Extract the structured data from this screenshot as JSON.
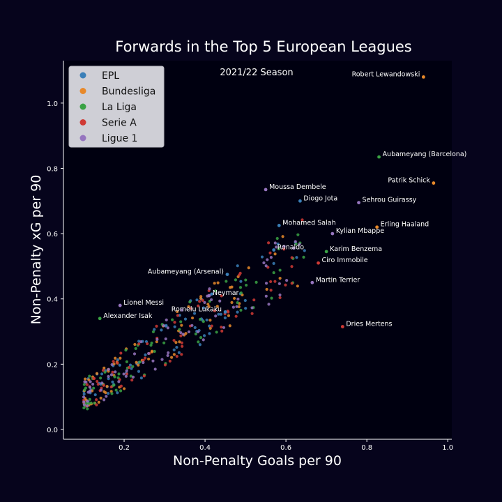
{
  "chart_data": {
    "type": "scatter",
    "title": "Forwards in the Top 5 European Leagues",
    "subtitle": "2021/22 Season",
    "xlabel": "Non-Penalty Goals per 90",
    "ylabel": "Non-Penalty xG per 90",
    "xlim": [
      0.05,
      1.01
    ],
    "ylim": [
      -0.03,
      1.13
    ],
    "x_ticks": [
      0.2,
      0.4,
      0.6,
      0.8,
      1.0
    ],
    "y_ticks": [
      0.0,
      0.2,
      0.4,
      0.6,
      0.8,
      1.0
    ],
    "x_tick_labels": [
      "0.2",
      "0.4",
      "0.6",
      "0.8",
      "1.0"
    ],
    "y_tick_labels": [
      "0.0",
      "0.2",
      "0.4",
      "0.6",
      "0.8",
      "1.0"
    ],
    "grid": false,
    "legend_position": "top-left",
    "colors": {
      "background": "#06041c",
      "text": "#ffffff",
      "legend_box": "#cfcfd6",
      "legend_text": "#111111"
    },
    "series": [
      {
        "name": "EPL",
        "color": "#3a7fb8"
      },
      {
        "name": "Bundesliga",
        "color": "#e8892a"
      },
      {
        "name": "La Liga",
        "color": "#3aa244"
      },
      {
        "name": "Serie A",
        "color": "#d03a35"
      },
      {
        "name": "Ligue 1",
        "color": "#9675bf"
      }
    ],
    "labeled_points": [
      {
        "label": "Robert Lewandowski",
        "x": 0.94,
        "y": 1.08,
        "series": "Bundesliga",
        "anchor": "end"
      },
      {
        "label": "Aubameyang (Barcelona)",
        "x": 0.83,
        "y": 0.835,
        "series": "La Liga",
        "anchor": "start"
      },
      {
        "label": "Patrik Schick",
        "x": 0.965,
        "y": 0.755,
        "series": "Bundesliga",
        "anchor": "end"
      },
      {
        "label": "Moussa Dembele",
        "x": 0.55,
        "y": 0.735,
        "series": "Ligue 1",
        "anchor": "start"
      },
      {
        "label": "Diogo Jota",
        "x": 0.635,
        "y": 0.7,
        "series": "EPL",
        "anchor": "start"
      },
      {
        "label": "Sehrou Guirassy",
        "x": 0.78,
        "y": 0.695,
        "series": "Ligue 1",
        "anchor": "start"
      },
      {
        "label": "Mohamed Salah",
        "x": 0.583,
        "y": 0.625,
        "series": "EPL",
        "anchor": "start"
      },
      {
        "label": "Erling Haaland",
        "x": 0.825,
        "y": 0.62,
        "series": "Bundesliga",
        "anchor": "start"
      },
      {
        "label": "Kylian Mbappe",
        "x": 0.715,
        "y": 0.6,
        "series": "Ligue 1",
        "anchor": "start"
      },
      {
        "label": "Ronaldo",
        "x": 0.57,
        "y": 0.55,
        "series": "EPL",
        "anchor": "start"
      },
      {
        "label": "Karim Benzema",
        "x": 0.7,
        "y": 0.545,
        "series": "La Liga",
        "anchor": "start"
      },
      {
        "label": "Ciro Immobile",
        "x": 0.68,
        "y": 0.51,
        "series": "Serie A",
        "anchor": "start"
      },
      {
        "label": "Martin Terrier",
        "x": 0.665,
        "y": 0.45,
        "series": "Ligue 1",
        "anchor": "start"
      },
      {
        "label": "Aubameyang (Arsenal)",
        "x": 0.455,
        "y": 0.475,
        "series": "EPL",
        "anchor": "end"
      },
      {
        "label": "Neymar",
        "x": 0.41,
        "y": 0.41,
        "series": "Ligue 1",
        "anchor": "start"
      },
      {
        "label": "Lionel Messi",
        "x": 0.19,
        "y": 0.38,
        "series": "Ligue 1",
        "anchor": "start"
      },
      {
        "label": "Romelu Lukaku",
        "x": 0.45,
        "y": 0.36,
        "series": "EPL",
        "anchor": "end"
      },
      {
        "label": "Alexander Isak",
        "x": 0.14,
        "y": 0.34,
        "series": "La Liga",
        "anchor": "start"
      },
      {
        "label": "Dries Mertens",
        "x": 0.74,
        "y": 0.315,
        "series": "Serie A",
        "anchor": "start"
      }
    ],
    "background_points_per_series": 75,
    "background_points_note": "unlabeled cloud of players, dense near (0.1-0.35, 0.05-0.35), spreading to (0.6, 0.6)"
  }
}
